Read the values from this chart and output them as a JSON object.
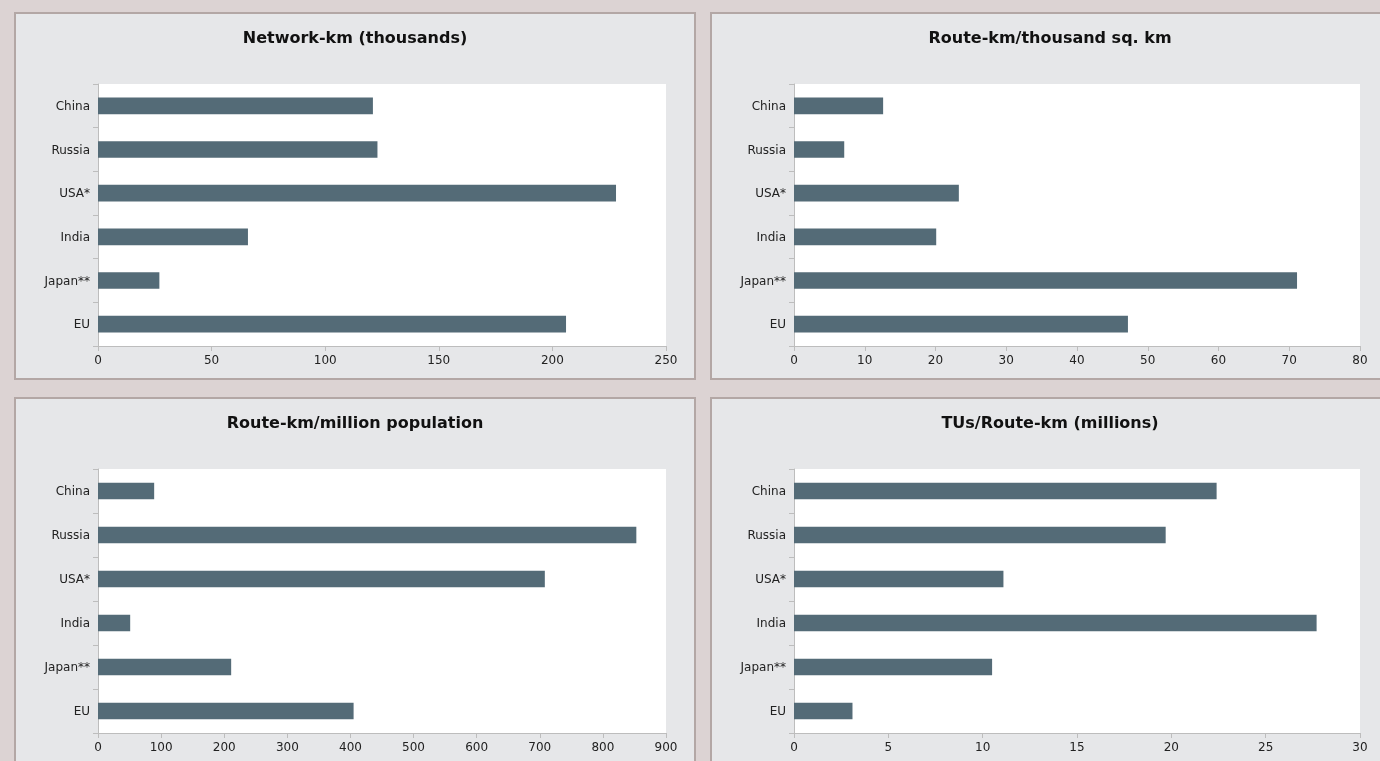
{
  "chart_data": [
    {
      "type": "bar",
      "orientation": "horizontal",
      "title": "Network-km (thousands)",
      "categories": [
        "China",
        "Russia",
        "USA*",
        "India",
        "Japan**",
        "EU"
      ],
      "values": [
        121,
        123,
        228,
        66,
        27,
        206
      ],
      "color": "#546b77",
      "xlim": [
        0,
        250
      ],
      "xticks": [
        0,
        50,
        100,
        150,
        200,
        250
      ],
      "grid": false
    },
    {
      "type": "bar",
      "orientation": "horizontal",
      "title": "Route-km/thousand sq. km",
      "categories": [
        "China",
        "Russia",
        "USA*",
        "India",
        "Japan**",
        "EU"
      ],
      "values": [
        12.6,
        7.1,
        23.3,
        20.1,
        71.1,
        47.2
      ],
      "color": "#546b77",
      "xlim": [
        0,
        80
      ],
      "xticks": [
        0,
        10,
        20,
        30,
        40,
        50,
        60,
        70,
        80
      ],
      "grid": false
    },
    {
      "type": "bar",
      "orientation": "horizontal",
      "title": "Route-km/million population",
      "categories": [
        "China",
        "Russia",
        "USA*",
        "India",
        "Japan**",
        "EU"
      ],
      "values": [
        89,
        853,
        708,
        51,
        211,
        405
      ],
      "color": "#546b77",
      "xlim": [
        0,
        900
      ],
      "xticks": [
        0,
        100,
        200,
        300,
        400,
        500,
        600,
        700,
        800,
        900
      ],
      "grid": false
    },
    {
      "type": "bar",
      "orientation": "horizontal",
      "title": "TUs/Route-km (millions)",
      "categories": [
        "China",
        "Russia",
        "USA*",
        "India",
        "Japan**",
        "EU"
      ],
      "values": [
        22.4,
        19.7,
        11.1,
        27.7,
        10.5,
        3.1
      ],
      "color": "#546b77",
      "xlim": [
        0,
        30
      ],
      "xticks": [
        0,
        5,
        10,
        15,
        20,
        25,
        30
      ],
      "grid": false
    }
  ]
}
